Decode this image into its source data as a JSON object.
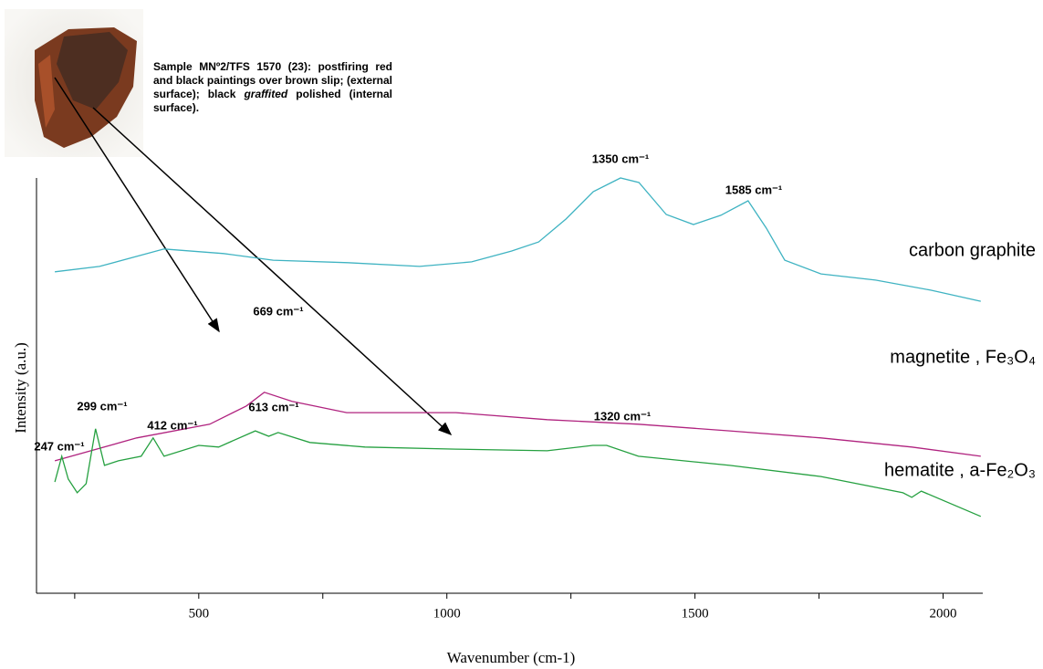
{
  "chart_data": {
    "type": "line",
    "x_label": "Wavenumber (cm-1)",
    "y_label": "Intensity (a.u.)",
    "xlim": [
      173,
      2080
    ],
    "xticks": [
      500,
      1000,
      1500,
      2000
    ],
    "xminor_ticks": [
      250,
      750,
      1250,
      1750
    ],
    "ylim": [
      0,
      100
    ],
    "sample_note": {
      "text_before": "Sample MNº2/TFS 1570 (23): postfiring red and black paintings over brown slip; (external surface); black ",
      "emphasis": "graffited",
      "text_after": " polished (internal surface)."
    },
    "series": [
      {
        "name": "carbon graphite",
        "color": "#3fb3c2",
        "x": [
          210,
          300,
          430,
          550,
          650,
          800,
          945,
          1050,
          1130,
          1185,
          1240,
          1295,
          1350,
          1387,
          1442,
          1497,
          1552,
          1607,
          1644,
          1681,
          1754,
          1864,
          1975,
          2076
        ],
        "values": [
          77.4,
          78.7,
          82.9,
          81.8,
          80.2,
          79.6,
          78.7,
          79.8,
          82.4,
          84.6,
          90.1,
          96.7,
          100,
          98.9,
          91.2,
          88.8,
          91.0,
          94.5,
          87.9,
          80.2,
          76.9,
          75.4,
          73.0,
          70.3
        ]
      },
      {
        "name": "magnetite , Fe₃O₄",
        "color": "#b0237f",
        "x": [
          210,
          375,
          522,
          596,
          632,
          688,
          798,
          1018,
          1202,
          1386,
          1570,
          1754,
          1937,
          2076
        ],
        "values": [
          31.9,
          37.4,
          40.7,
          45.1,
          48.4,
          46.2,
          43.5,
          43.5,
          41.8,
          40.7,
          39.1,
          37.4,
          35.2,
          33.0
        ]
      },
      {
        "name": "hematite , a-Fe₂O₃",
        "color": "#25a040",
        "x": [
          210,
          224,
          237,
          255,
          273,
          292,
          310,
          338,
          384,
          408,
          430,
          500,
          540,
          614,
          641,
          660,
          724,
          835,
          1018,
          1202,
          1294,
          1322,
          1386,
          1570,
          1754,
          1919,
          1937,
          1956,
          2076
        ],
        "values": [
          26.8,
          33.0,
          27.5,
          24.2,
          26.4,
          39.6,
          30.8,
          31.9,
          33.0,
          37.4,
          33.0,
          35.6,
          35.2,
          39.1,
          37.8,
          38.7,
          36.3,
          35.2,
          34.7,
          34.3,
          35.6,
          35.6,
          33.0,
          30.8,
          28.1,
          24.2,
          23.1,
          24.6,
          18.5
        ]
      }
    ],
    "annotations": [
      "1350 cm⁻¹",
      "1585 cm⁻¹",
      "669 cm⁻¹",
      "299 cm⁻¹",
      "247 cm⁻¹",
      "412 cm⁻¹",
      "613 cm⁻¹",
      "1320 cm⁻¹"
    ]
  }
}
